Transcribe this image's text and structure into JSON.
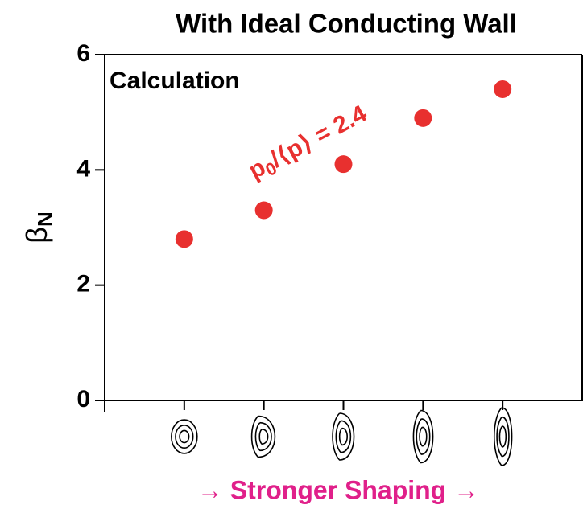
{
  "chart_data": {
    "type": "scatter",
    "title": "With Ideal Conducting Wall",
    "annotation": "Calculation",
    "ratio_label": {
      "main": "p",
      "sub": "0",
      "rest": "/⟨p⟩ = 2.4"
    },
    "y_label": {
      "main": "β",
      "sub": "N"
    },
    "x_label": "→ Stronger Shaping →",
    "categories": [
      null,
      null,
      null,
      null,
      null
    ],
    "values": [
      2.8,
      3.3,
      4.1,
      4.9,
      5.4
    ],
    "color": "#e8302f",
    "x_label_color": "#e0208a",
    "ylim": [
      0,
      6
    ],
    "yticks": [
      0,
      2,
      4,
      6
    ]
  }
}
